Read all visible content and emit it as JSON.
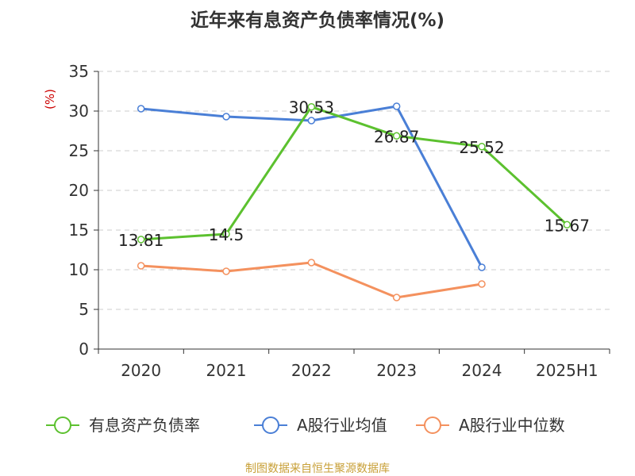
{
  "chart_data": {
    "type": "line",
    "title": "近年来有息资产负债率情况(%)",
    "ylabel": "(%)",
    "categories": [
      "2020",
      "2021",
      "2022",
      "2023",
      "2024",
      "2025H1"
    ],
    "ylim": [
      0,
      35
    ],
    "yticks": [
      "0",
      "5",
      "10",
      "15",
      "20",
      "25",
      "30",
      "35"
    ],
    "grid": true,
    "legend_position": "bottom",
    "series": [
      {
        "name": "有息资产负债率",
        "color": "#5cc12f",
        "values": [
          13.81,
          14.5,
          30.53,
          26.87,
          25.52,
          15.67
        ],
        "labels": [
          "13.81",
          "14.5",
          "30.53",
          "26.87",
          "25.52",
          "15.67"
        ]
      },
      {
        "name": "A股行业均值",
        "color": "#4a7fd6",
        "values": [
          30.3,
          29.3,
          28.8,
          30.6,
          10.3,
          null
        ]
      },
      {
        "name": "A股行业中位数",
        "color": "#f4915e",
        "values": [
          10.5,
          9.8,
          10.9,
          6.5,
          8.2,
          null
        ]
      }
    ]
  },
  "source": "制图数据来自恒生聚源数据库",
  "colors": {
    "axis": "#333333",
    "grid": "#cccccc",
    "unit": "#cc0000",
    "source": "#c8a038"
  }
}
